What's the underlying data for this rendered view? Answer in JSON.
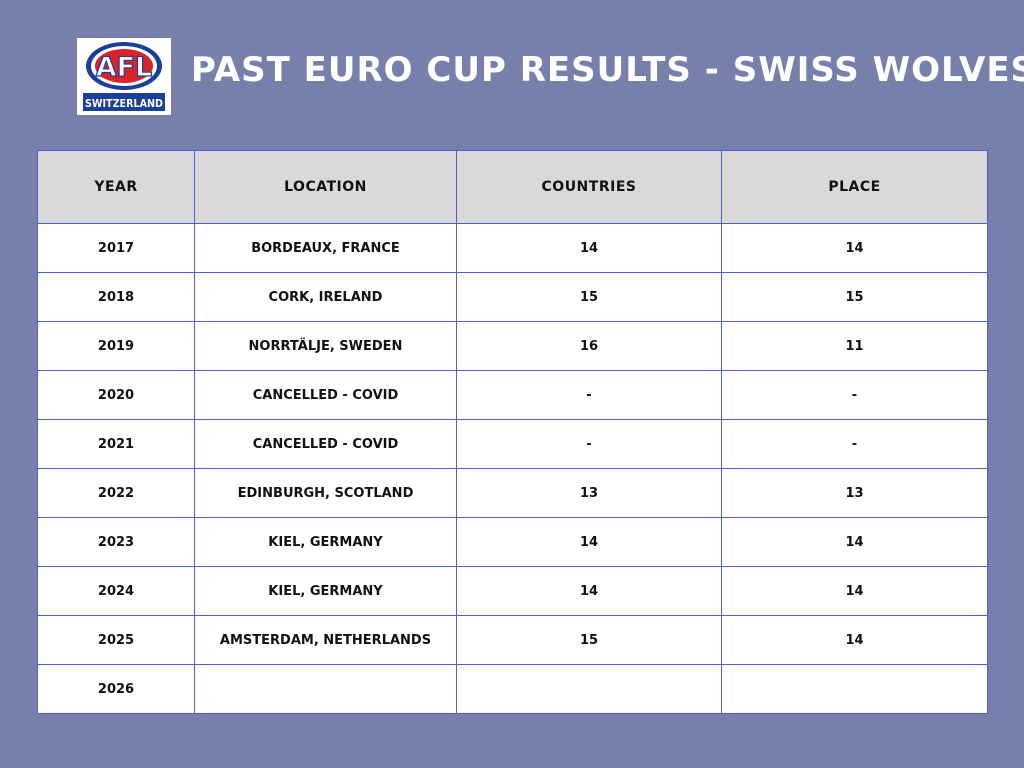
{
  "header": {
    "title": "PAST EURO CUP RESULTS - SWISS WOLVES",
    "logo": {
      "top_text": "AFL",
      "bottom_text": "SWITZERLAND",
      "colors": {
        "blue": "#1a3f9a",
        "red": "#d8232a",
        "white": "#ffffff"
      }
    }
  },
  "table": {
    "columns": [
      "YEAR",
      "LOCATION",
      "COUNTRIES",
      "PLACE"
    ],
    "rows": [
      {
        "year": "2017",
        "location": "BORDEAUX, FRANCE",
        "countries": "14",
        "place": "14"
      },
      {
        "year": "2018",
        "location": "CORK, IRELAND",
        "countries": "15",
        "place": "15"
      },
      {
        "year": "2019",
        "location": "NORRTÄLJE, SWEDEN",
        "countries": "16",
        "place": "11"
      },
      {
        "year": "2020",
        "location": "CANCELLED - COVID",
        "countries": "-",
        "place": "-"
      },
      {
        "year": "2021",
        "location": "CANCELLED - COVID",
        "countries": "-",
        "place": "-"
      },
      {
        "year": "2022",
        "location": "EDINBURGH, SCOTLAND",
        "countries": "13",
        "place": "13"
      },
      {
        "year": "2023",
        "location": "KIEL, GERMANY",
        "countries": "14",
        "place": "14"
      },
      {
        "year": "2024",
        "location": "KIEL, GERMANY",
        "countries": "14",
        "place": "14"
      },
      {
        "year": "2025",
        "location": "AMSTERDAM, NETHERLANDS",
        "countries": "15",
        "place": "14"
      },
      {
        "year": "2026",
        "location": "",
        "countries": "",
        "place": ""
      }
    ]
  },
  "colors": {
    "background": "#7680ab",
    "header_row": "#d9d9d9",
    "grid_lines": "#4a5fd6"
  }
}
